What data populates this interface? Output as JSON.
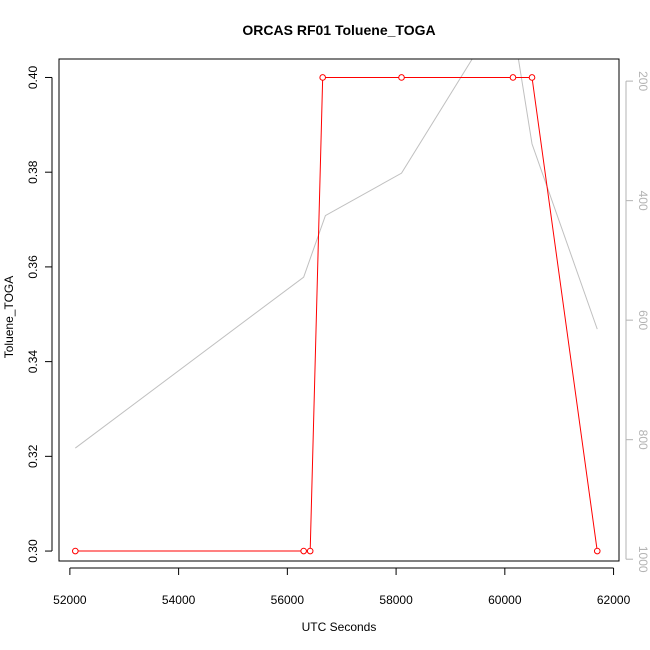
{
  "chart_data": {
    "type": "line",
    "title": "ORCAS RF01 Toluene_TOGA",
    "xlabel": "UTC Seconds",
    "ylabel": "Toluene_TOGA",
    "xlim": [
      51800,
      62100
    ],
    "ylim": [
      0.2979,
      0.4039
    ],
    "x_ticks": [
      52000,
      54000,
      56000,
      58000,
      60000,
      62000
    ],
    "y_ticks": [
      0.3,
      0.32,
      0.34,
      0.36,
      0.38,
      0.4
    ],
    "y2_ticks": [
      200,
      400,
      600,
      800,
      1000
    ],
    "y2_ticks_in_range": [
      200,
      400,
      600,
      800,
      1000
    ],
    "y2lim": [
      1003,
      163
    ],
    "grid": false,
    "legend": "none",
    "colors": {
      "primary": "#ff0000",
      "secondary": "#c0c0c0",
      "axis": "#000000",
      "right_axis": "#b3b3b3"
    },
    "series": [
      {
        "axis": "left",
        "marker": "open-circle",
        "x": [
          52100,
          56300,
          56420,
          56650,
          58100,
          60150,
          60500,
          61700
        ],
        "y": [
          0.3,
          0.3,
          0.3,
          0.4,
          0.4,
          0.4,
          0.4,
          0.3
        ]
      },
      {
        "axis": "right",
        "marker": "none",
        "x": [
          52100,
          56300,
          56700,
          58100,
          59400,
          60250,
          60500,
          61700
        ],
        "y": [
          814,
          528,
          425,
          354,
          163,
          163,
          305,
          615
        ]
      }
    ]
  }
}
